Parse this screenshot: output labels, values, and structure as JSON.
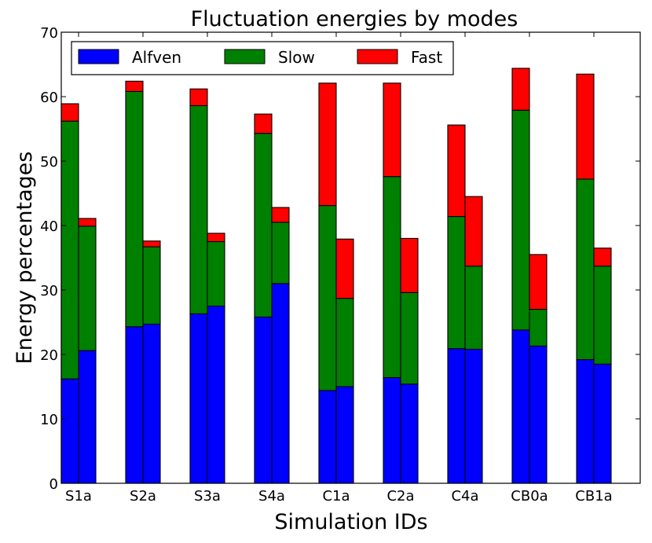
{
  "chart_data": {
    "type": "bar",
    "stacked": true,
    "title": "Fluctuation energies by modes",
    "xlabel": "Simulation IDs",
    "ylabel": "Energy percentages",
    "ylim": [
      0,
      70
    ],
    "yticks": [
      0,
      10,
      20,
      30,
      40,
      50,
      60,
      70
    ],
    "legend_position": "top-left",
    "categories": [
      "S1a",
      "S2a",
      "S3a",
      "S4a",
      "C1a",
      "C2a",
      "C4a",
      "CB0a",
      "CB1a"
    ],
    "bars_per_category": 2,
    "series": [
      {
        "name": "Alfven",
        "color": "#0000ff",
        "values": [
          [
            16.2,
            20.6
          ],
          [
            24.3,
            24.7
          ],
          [
            26.3,
            27.5
          ],
          [
            25.8,
            31.0
          ],
          [
            14.4,
            15.0
          ],
          [
            16.4,
            15.4
          ],
          [
            20.9,
            20.8
          ],
          [
            23.8,
            21.3
          ],
          [
            19.2,
            18.5
          ]
        ]
      },
      {
        "name": "Slow",
        "color": "#008000",
        "values": [
          [
            40.0,
            19.3
          ],
          [
            36.5,
            12.0
          ],
          [
            32.3,
            10.0
          ],
          [
            28.5,
            9.5
          ],
          [
            28.7,
            13.7
          ],
          [
            31.2,
            14.2
          ],
          [
            20.5,
            12.9
          ],
          [
            34.1,
            5.7
          ],
          [
            28.0,
            15.2
          ]
        ]
      },
      {
        "name": "Fast",
        "color": "#ff0000",
        "values": [
          [
            2.7,
            1.2
          ],
          [
            1.6,
            0.9
          ],
          [
            2.6,
            1.3
          ],
          [
            3.0,
            2.3
          ],
          [
            19.0,
            9.2
          ],
          [
            14.5,
            8.4
          ],
          [
            14.2,
            10.8
          ],
          [
            6.5,
            8.5
          ],
          [
            16.3,
            2.8
          ]
        ]
      }
    ]
  }
}
